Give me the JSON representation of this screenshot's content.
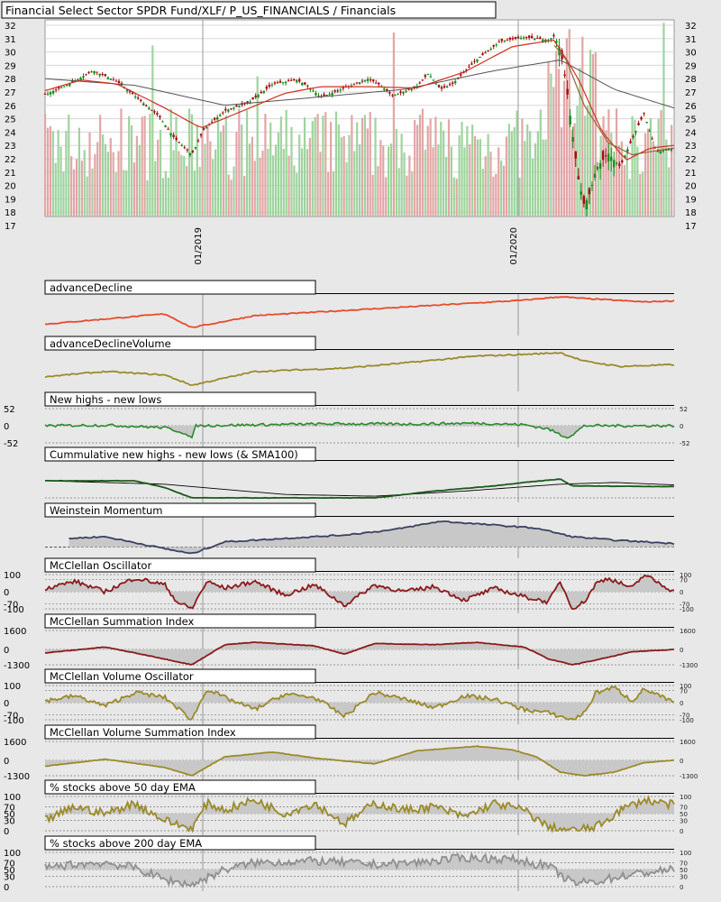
{
  "header": {
    "title": "Financial Select Sector SPDR Fund/XLF/ P_US_FINANCIALS / Financials"
  },
  "colors": {
    "background": "#e8e8e8",
    "panel_bg": "#ffffff",
    "candle_up": "#1a8a1a",
    "candle_down": "#a01010",
    "volume_up": "#9fd39f",
    "volume_down": "#e2a6a6",
    "ma_short": "#d03020",
    "ma_mid": "#8a6a3a",
    "ma_long": "#555555",
    "advance_decline": "#e84a2a",
    "olive": "#9a8a2a",
    "green_line": "#2a8a2a",
    "dark_green": "#1a5a1a",
    "navy": "#3a4060",
    "maroon": "#8a1a1a",
    "gray_line": "#909090",
    "fill": "#c8c8c8"
  },
  "chart_data": [
    {
      "type": "candlestick",
      "title": "Financial Select Sector SPDR Fund/XLF/ P_US_FINANCIALS / Financials",
      "ylim": [
        17,
        32
      ],
      "yticks": [
        17,
        18,
        19,
        20,
        21,
        22,
        23,
        24,
        25,
        26,
        27,
        28,
        29,
        30,
        31,
        32
      ],
      "date_labels": [
        "01/2019",
        "01/2020"
      ],
      "date_label_fractions": [
        0.25,
        0.75
      ],
      "price_path": [
        [
          0,
          26.8
        ],
        [
          0.04,
          27.6
        ],
        [
          0.08,
          28.6
        ],
        [
          0.12,
          27.8
        ],
        [
          0.155,
          26.5
        ],
        [
          0.19,
          25.2
        ],
        [
          0.215,
          23.6
        ],
        [
          0.245,
          22.3
        ],
        [
          0.265,
          24.2
        ],
        [
          0.3,
          25.6
        ],
        [
          0.34,
          26.2
        ],
        [
          0.38,
          27.6
        ],
        [
          0.42,
          27.9
        ],
        [
          0.44,
          27.4
        ],
        [
          0.46,
          26.6
        ],
        [
          0.5,
          27.3
        ],
        [
          0.54,
          28.0
        ],
        [
          0.56,
          27.5
        ],
        [
          0.58,
          26.7
        ],
        [
          0.62,
          27.4
        ],
        [
          0.64,
          28.4
        ],
        [
          0.66,
          27.2
        ],
        [
          0.68,
          27.6
        ],
        [
          0.72,
          29.4
        ],
        [
          0.76,
          30.8
        ],
        [
          0.8,
          31.1
        ],
        [
          0.84,
          30.9
        ],
        [
          0.85,
          31.2
        ],
        [
          0.86,
          30.2
        ],
        [
          0.87,
          27.5
        ],
        [
          0.88,
          24.0
        ],
        [
          0.89,
          20.5
        ],
        [
          0.9,
          18.5
        ],
        [
          0.91,
          19.5
        ],
        [
          0.92,
          21.3
        ],
        [
          0.94,
          22.4
        ],
        [
          0.96,
          21.4
        ],
        [
          0.98,
          23.5
        ],
        [
          1.0,
          25.4
        ],
        [
          1.02,
          22.5
        ],
        [
          1.05,
          22.8
        ]
      ],
      "ma_short_path": [
        [
          0,
          27.1
        ],
        [
          0.06,
          27.9
        ],
        [
          0.12,
          27.6
        ],
        [
          0.2,
          25.8
        ],
        [
          0.26,
          24.3
        ],
        [
          0.32,
          25.4
        ],
        [
          0.4,
          26.9
        ],
        [
          0.46,
          27.4
        ],
        [
          0.54,
          27.4
        ],
        [
          0.62,
          27.3
        ],
        [
          0.7,
          28.5
        ],
        [
          0.78,
          30.4
        ],
        [
          0.85,
          30.9
        ],
        [
          0.89,
          28.0
        ],
        [
          0.93,
          24.0
        ],
        [
          0.97,
          21.9
        ],
        [
          1.01,
          22.8
        ],
        [
          1.05,
          23.0
        ]
      ],
      "ma_long_path": [
        [
          0,
          28.0
        ],
        [
          0.15,
          27.5
        ],
        [
          0.3,
          26.0
        ],
        [
          0.45,
          26.6
        ],
        [
          0.6,
          27.2
        ],
        [
          0.75,
          28.6
        ],
        [
          0.86,
          29.4
        ],
        [
          0.95,
          27.2
        ],
        [
          1.05,
          25.8
        ]
      ],
      "ma_mid_path": [
        [
          0.85,
          30.5
        ],
        [
          0.87,
          29.4
        ],
        [
          0.9,
          26.0
        ],
        [
          0.94,
          23.2
        ],
        [
          0.98,
          22.3
        ],
        [
          1.02,
          22.6
        ],
        [
          1.05,
          22.8
        ]
      ]
    },
    {
      "type": "line",
      "title": "advanceDecline",
      "path": [
        [
          0,
          0.2
        ],
        [
          0.1,
          0.35
        ],
        [
          0.2,
          0.5
        ],
        [
          0.245,
          0.1
        ],
        [
          0.35,
          0.45
        ],
        [
          0.5,
          0.6
        ],
        [
          0.65,
          0.75
        ],
        [
          0.8,
          0.9
        ],
        [
          0.86,
          1.0
        ],
        [
          0.9,
          0.95
        ],
        [
          1.0,
          0.85
        ],
        [
          1.05,
          0.88
        ]
      ]
    },
    {
      "type": "line",
      "title": "advanceDeclineVolume",
      "path": [
        [
          0,
          0.3
        ],
        [
          0.1,
          0.45
        ],
        [
          0.2,
          0.35
        ],
        [
          0.245,
          0.05
        ],
        [
          0.35,
          0.45
        ],
        [
          0.5,
          0.55
        ],
        [
          0.6,
          0.7
        ],
        [
          0.72,
          0.9
        ],
        [
          0.8,
          0.95
        ],
        [
          0.86,
          1.0
        ],
        [
          0.9,
          0.75
        ],
        [
          0.96,
          0.6
        ],
        [
          1.05,
          0.65
        ]
      ]
    },
    {
      "type": "line",
      "title": "New highs - new lows",
      "ylim": [
        -52,
        52
      ],
      "yticks": [
        52,
        0,
        -52
      ],
      "path": [
        [
          0,
          0
        ],
        [
          0.1,
          2
        ],
        [
          0.2,
          -6
        ],
        [
          0.23,
          -20
        ],
        [
          0.245,
          -40
        ],
        [
          0.25,
          0
        ],
        [
          0.4,
          4
        ],
        [
          0.5,
          6
        ],
        [
          0.6,
          5
        ],
        [
          0.72,
          8
        ],
        [
          0.8,
          3
        ],
        [
          0.84,
          -10
        ],
        [
          0.87,
          -35
        ],
        [
          0.88,
          -28
        ],
        [
          0.9,
          0
        ],
        [
          1.05,
          0
        ]
      ]
    },
    {
      "type": "line",
      "title": "Cummulative new highs - new lows (& SMA100)",
      "path": [
        [
          0,
          0.5
        ],
        [
          0.15,
          0.5
        ],
        [
          0.2,
          0.3
        ],
        [
          0.245,
          0.0
        ],
        [
          0.4,
          0.0
        ],
        [
          0.55,
          0.0
        ],
        [
          0.65,
          0.2
        ],
        [
          0.75,
          0.35
        ],
        [
          0.8,
          0.45
        ],
        [
          0.86,
          0.55
        ],
        [
          0.88,
          0.35
        ],
        [
          1.05,
          0.33
        ]
      ],
      "sma_path": [
        [
          0,
          0.5
        ],
        [
          0.2,
          0.4
        ],
        [
          0.4,
          0.1
        ],
        [
          0.55,
          0.05
        ],
        [
          0.7,
          0.2
        ],
        [
          0.86,
          0.4
        ],
        [
          0.95,
          0.45
        ],
        [
          1.05,
          0.38
        ]
      ]
    },
    {
      "type": "area",
      "title": "Weinstein Momentum",
      "path": [
        [
          0.04,
          0.45
        ],
        [
          0.1,
          0.5
        ],
        [
          0.2,
          0.15
        ],
        [
          0.245,
          0.0
        ],
        [
          0.3,
          0.35
        ],
        [
          0.4,
          0.45
        ],
        [
          0.5,
          0.55
        ],
        [
          0.58,
          0.7
        ],
        [
          0.66,
          0.95
        ],
        [
          0.74,
          0.85
        ],
        [
          0.82,
          0.75
        ],
        [
          0.88,
          0.5
        ],
        [
          0.95,
          0.4
        ],
        [
          1.05,
          0.3
        ]
      ]
    },
    {
      "type": "area",
      "title": "McClellan Oscillator",
      "ylim": [
        -100,
        100
      ],
      "yticks_left": [
        100,
        0,
        -70,
        -100
      ],
      "yticks_right": [
        100,
        70,
        0,
        -70,
        -100
      ],
      "path": [
        [
          0,
          20
        ],
        [
          0.05,
          60
        ],
        [
          0.1,
          0
        ],
        [
          0.15,
          80
        ],
        [
          0.2,
          40
        ],
        [
          0.22,
          -60
        ],
        [
          0.245,
          -100
        ],
        [
          0.27,
          60
        ],
        [
          0.3,
          20
        ],
        [
          0.35,
          60
        ],
        [
          0.4,
          -20
        ],
        [
          0.45,
          40
        ],
        [
          0.5,
          -80
        ],
        [
          0.55,
          40
        ],
        [
          0.6,
          0
        ],
        [
          0.65,
          30
        ],
        [
          0.7,
          -50
        ],
        [
          0.75,
          20
        ],
        [
          0.8,
          -30
        ],
        [
          0.84,
          -60
        ],
        [
          0.86,
          60
        ],
        [
          0.88,
          -100
        ],
        [
          0.9,
          -60
        ],
        [
          0.92,
          50
        ],
        [
          0.94,
          80
        ],
        [
          0.98,
          20
        ],
        [
          1.0,
          100
        ],
        [
          1.05,
          0
        ]
      ]
    },
    {
      "type": "area",
      "title": "McClellan Summation Index",
      "ylim": [
        -1300,
        1600
      ],
      "yticks": [
        1600,
        0,
        -1300
      ],
      "path": [
        [
          0,
          -300
        ],
        [
          0.1,
          200
        ],
        [
          0.18,
          -600
        ],
        [
          0.245,
          -1300
        ],
        [
          0.3,
          400
        ],
        [
          0.35,
          600
        ],
        [
          0.45,
          300
        ],
        [
          0.5,
          -400
        ],
        [
          0.55,
          500
        ],
        [
          0.65,
          400
        ],
        [
          0.72,
          600
        ],
        [
          0.8,
          200
        ],
        [
          0.84,
          -800
        ],
        [
          0.88,
          -1300
        ],
        [
          0.92,
          -900
        ],
        [
          0.98,
          -200
        ],
        [
          1.05,
          0
        ]
      ]
    },
    {
      "type": "area",
      "title": "McClellan Volume Oscillator",
      "ylim": [
        -100,
        100
      ],
      "yticks_left": [
        100,
        0,
        -70,
        -100
      ],
      "yticks_right": [
        100,
        70,
        0,
        -70,
        -100
      ],
      "path": [
        [
          0,
          10
        ],
        [
          0.05,
          40
        ],
        [
          0.1,
          -20
        ],
        [
          0.15,
          60
        ],
        [
          0.2,
          30
        ],
        [
          0.245,
          -100
        ],
        [
          0.27,
          80
        ],
        [
          0.3,
          30
        ],
        [
          0.35,
          -40
        ],
        [
          0.4,
          50
        ],
        [
          0.45,
          30
        ],
        [
          0.5,
          -80
        ],
        [
          0.55,
          60
        ],
        [
          0.6,
          20
        ],
        [
          0.65,
          -30
        ],
        [
          0.7,
          40
        ],
        [
          0.75,
          20
        ],
        [
          0.8,
          -40
        ],
        [
          0.84,
          -60
        ],
        [
          0.88,
          -100
        ],
        [
          0.9,
          -60
        ],
        [
          0.92,
          60
        ],
        [
          0.95,
          90
        ],
        [
          0.98,
          10
        ],
        [
          1.0,
          80
        ],
        [
          1.05,
          0
        ]
      ]
    },
    {
      "type": "area",
      "title": "McClellan Volume Summation Index",
      "ylim": [
        -1300,
        1600
      ],
      "yticks": [
        1600,
        0,
        -1300
      ],
      "path": [
        [
          0,
          -500
        ],
        [
          0.1,
          100
        ],
        [
          0.2,
          -600
        ],
        [
          0.245,
          -1300
        ],
        [
          0.3,
          300
        ],
        [
          0.38,
          700
        ],
        [
          0.45,
          200
        ],
        [
          0.55,
          -300
        ],
        [
          0.62,
          800
        ],
        [
          0.72,
          1200
        ],
        [
          0.78,
          900
        ],
        [
          0.82,
          300
        ],
        [
          0.86,
          -1000
        ],
        [
          0.9,
          -1300
        ],
        [
          0.95,
          -1000
        ],
        [
          1.0,
          -200
        ],
        [
          1.05,
          0
        ]
      ]
    },
    {
      "type": "area",
      "title": "% stocks above 50 day EMA",
      "ylim": [
        0,
        100
      ],
      "yticks_left": [
        100,
        70,
        50,
        30,
        0
      ],
      "yticks_right": [
        100,
        70,
        50,
        30,
        0
      ],
      "path": [
        [
          0,
          30
        ],
        [
          0.05,
          70
        ],
        [
          0.1,
          50
        ],
        [
          0.15,
          80
        ],
        [
          0.2,
          30
        ],
        [
          0.245,
          5
        ],
        [
          0.27,
          80
        ],
        [
          0.3,
          60
        ],
        [
          0.35,
          90
        ],
        [
          0.4,
          50
        ],
        [
          0.45,
          80
        ],
        [
          0.5,
          20
        ],
        [
          0.55,
          80
        ],
        [
          0.6,
          60
        ],
        [
          0.65,
          70
        ],
        [
          0.7,
          40
        ],
        [
          0.75,
          80
        ],
        [
          0.8,
          60
        ],
        [
          0.84,
          10
        ],
        [
          0.88,
          0
        ],
        [
          0.92,
          10
        ],
        [
          0.96,
          60
        ],
        [
          1.0,
          90
        ],
        [
          1.05,
          75
        ]
      ]
    },
    {
      "type": "area",
      "title": "% stocks above 200 day EMA",
      "ylim": [
        0,
        100
      ],
      "yticks_left": [
        100,
        70,
        50,
        30,
        0
      ],
      "yticks_right": [
        100,
        70,
        50,
        30,
        0
      ],
      "path": [
        [
          0,
          55
        ],
        [
          0.05,
          65
        ],
        [
          0.1,
          70
        ],
        [
          0.15,
          55
        ],
        [
          0.2,
          20
        ],
        [
          0.245,
          5
        ],
        [
          0.3,
          50
        ],
        [
          0.35,
          70
        ],
        [
          0.45,
          75
        ],
        [
          0.55,
          65
        ],
        [
          0.62,
          70
        ],
        [
          0.7,
          85
        ],
        [
          0.78,
          80
        ],
        [
          0.84,
          60
        ],
        [
          0.88,
          10
        ],
        [
          0.92,
          15
        ],
        [
          0.96,
          30
        ],
        [
          1.0,
          40
        ],
        [
          1.05,
          50
        ]
      ]
    }
  ]
}
